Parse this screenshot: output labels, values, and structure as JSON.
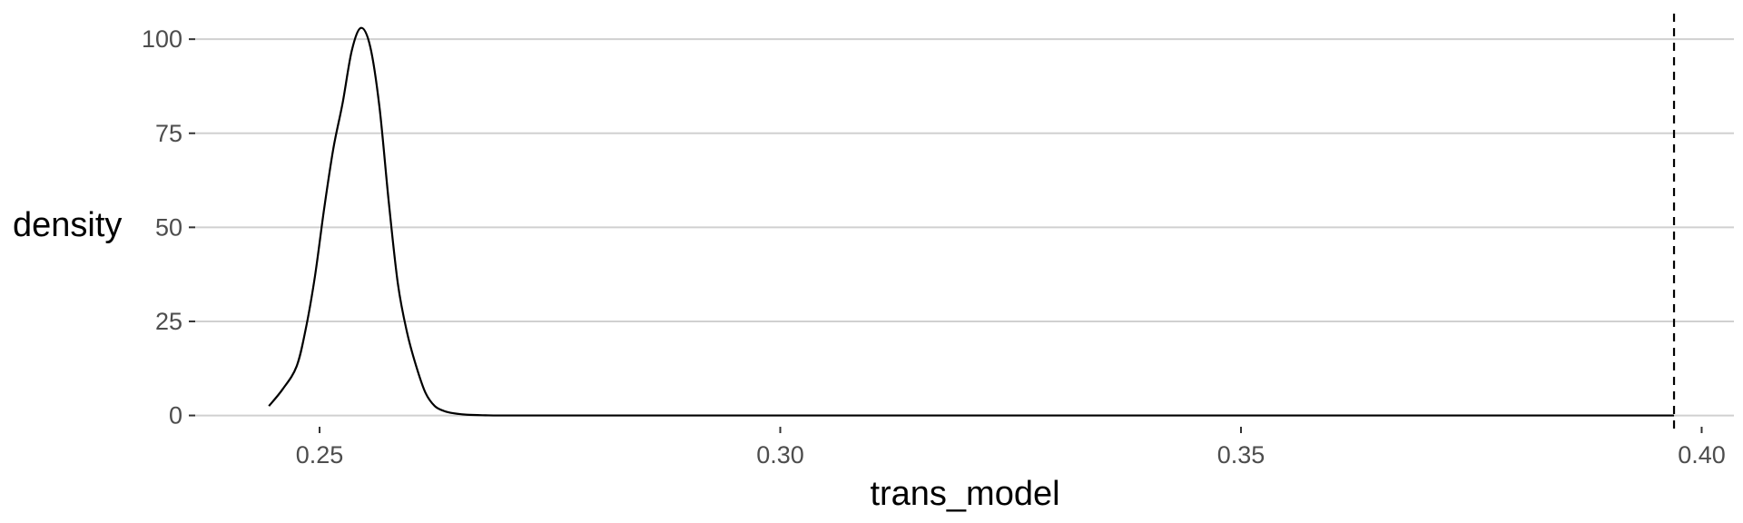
{
  "chart_data": {
    "type": "line",
    "xlabel": "trans_model",
    "ylabel": "density",
    "xlim": [
      0.2365,
      0.4035
    ],
    "ylim": [
      -3,
      108
    ],
    "x_ticks": [
      0.25,
      0.3,
      0.35,
      0.4
    ],
    "x_tick_labels": [
      "0.25",
      "0.30",
      "0.35",
      "0.40"
    ],
    "y_ticks": [
      0,
      25,
      50,
      75,
      100
    ],
    "y_tick_labels": [
      "0",
      "25",
      "50",
      "75",
      "100"
    ],
    "grid": "horizontal-major",
    "legend": "none",
    "series": [
      {
        "x": [
          0.2445,
          0.246,
          0.2475,
          0.2485,
          0.2495,
          0.2505,
          0.2515,
          0.2525,
          0.2535,
          0.2545,
          0.2555,
          0.2565,
          0.2575,
          0.2585,
          0.2595,
          0.2605,
          0.2615,
          0.2625,
          0.2635,
          0.2645,
          0.266,
          0.268,
          0.27,
          0.28,
          0.3,
          0.32,
          0.34,
          0.36,
          0.38,
          0.397
        ],
        "y": [
          2.5,
          7,
          13,
          23,
          37,
          55,
          71,
          83,
          97,
          103,
          98,
          82,
          57,
          35,
          22,
          13,
          6,
          2.5,
          1.2,
          0.6,
          0.2,
          0.05,
          0,
          0,
          0,
          0,
          0,
          0,
          0,
          0
        ]
      }
    ],
    "reference_lines": [
      {
        "axis": "x",
        "value": 0.397,
        "style": "dashed"
      }
    ]
  }
}
